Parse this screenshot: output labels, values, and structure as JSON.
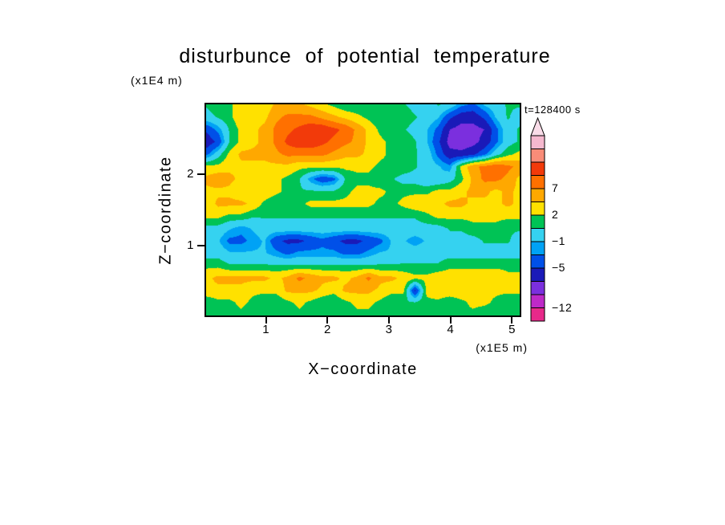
{
  "chart_data": {
    "type": "heatmap",
    "title": "disturbunce of potential temperature",
    "time_label": "t=128400 s",
    "xlabel": "X−coordinate",
    "ylabel": "Z−coordinate",
    "x_unit": "(x1E5 m)",
    "y_unit": "(x1E4 m)",
    "x_range": [
      0,
      5.15
    ],
    "z_range": [
      0,
      3
    ],
    "x_ticks": [
      {
        "value": 1,
        "label": "1"
      },
      {
        "value": 2,
        "label": "2"
      },
      {
        "value": 3,
        "label": "3"
      },
      {
        "value": 4,
        "label": "4"
      },
      {
        "value": 5,
        "label": "5"
      }
    ],
    "y_ticks": [
      {
        "value": 1,
        "label": "1"
      },
      {
        "value": 2,
        "label": "2"
      }
    ],
    "color_bins": [
      {
        "max": -12,
        "color": "#E7298A"
      },
      {
        "max": -9,
        "color": "#BE29C8"
      },
      {
        "max": -7,
        "color": "#7B2FDE"
      },
      {
        "max": -4.5,
        "color": "#1A1AB8"
      },
      {
        "max": -2.5,
        "color": "#0050E8"
      },
      {
        "max": -1.2,
        "color": "#00A2F5"
      },
      {
        "max": 0.8,
        "color": "#35D2F0"
      },
      {
        "max": 2.5,
        "color": "#00C355"
      },
      {
        "max": 4.5,
        "color": "#FFE100"
      },
      {
        "max": 6.5,
        "color": "#FFA800"
      },
      {
        "max": 8.5,
        "color": "#FF7000"
      },
      {
        "max": 10.5,
        "color": "#F23A0A"
      },
      {
        "max": 12,
        "color": "#F98C78"
      },
      {
        "max": 99,
        "color": "#F5B8CE"
      }
    ],
    "grid": [
      [
        1,
        2,
        2,
        4,
        3,
        3,
        5,
        5,
        5,
        4,
        3,
        2,
        1,
        1,
        2,
        1,
        1,
        1,
        0,
        -1,
        1,
        0,
        -2,
        -3,
        -1,
        0,
        1,
        1
      ],
      [
        0,
        1,
        2,
        4,
        4,
        4,
        6,
        7,
        7,
        7,
        6,
        5,
        4,
        3,
        2,
        1,
        1,
        2,
        1,
        0,
        -1,
        -4,
        -6,
        -6,
        -4,
        -1,
        1,
        0
      ],
      [
        -4,
        -2,
        1,
        3,
        4,
        5,
        7,
        8,
        9,
        10,
        10,
        9,
        8,
        6,
        4,
        2,
        1,
        1,
        0,
        -1,
        -3,
        -7,
        -8,
        -8,
        -7,
        -3,
        0,
        1
      ],
      [
        -6,
        -4,
        1,
        3,
        4,
        5,
        7,
        9,
        10,
        10,
        9,
        8,
        7,
        6,
        4,
        3,
        2,
        2,
        1,
        -1,
        -4,
        -8,
        -9,
        -8,
        -6,
        -3,
        0,
        1
      ],
      [
        -3,
        0,
        3,
        5,
        5,
        5,
        6,
        7,
        7,
        7,
        7,
        6,
        5,
        5,
        4,
        3,
        2,
        2,
        1,
        0,
        -3,
        -6,
        -6,
        -5,
        -3,
        0,
        2,
        3
      ],
      [
        3,
        3,
        4,
        4,
        4,
        4,
        4,
        4,
        3,
        3,
        3,
        3,
        3,
        3,
        3,
        2,
        2,
        2,
        1,
        0,
        -1,
        -2,
        3,
        6,
        7,
        8,
        7,
        6
      ],
      [
        5,
        6,
        5,
        4,
        3,
        3,
        3,
        2,
        1,
        -2,
        -4,
        -3,
        1,
        2,
        2,
        1,
        1,
        0,
        0,
        -1,
        -1,
        0,
        2,
        5,
        7,
        7,
        6,
        4
      ],
      [
        4,
        4,
        4,
        3,
        3,
        4,
        3,
        2,
        1,
        1,
        1,
        1,
        2,
        3,
        3,
        3,
        2,
        2,
        2,
        2,
        3,
        3,
        4,
        5,
        5,
        4,
        5,
        4
      ],
      [
        3,
        5,
        5,
        5,
        4,
        2,
        1,
        1,
        2,
        3,
        3,
        3,
        3,
        3,
        3,
        2,
        2,
        3,
        4,
        4,
        4,
        5,
        5,
        4,
        4,
        4,
        5,
        4
      ],
      [
        3,
        3,
        2,
        2,
        1,
        1,
        1,
        1,
        1,
        1,
        1,
        1,
        1,
        1,
        1,
        1,
        1,
        1,
        1,
        2,
        3,
        3,
        3,
        3,
        3,
        3,
        3,
        3
      ],
      [
        0,
        0,
        -1,
        -2,
        -1,
        0,
        0,
        0,
        0,
        0,
        0,
        0,
        0,
        0,
        0,
        0,
        0,
        0,
        0,
        0,
        0,
        1,
        1,
        2,
        2,
        2,
        1,
        1
      ],
      [
        0,
        -1,
        -3,
        -3,
        -2,
        -1,
        -4,
        -5,
        -5,
        -4,
        -3,
        -4,
        -5,
        -5,
        -4,
        -3,
        -1,
        -1,
        -2,
        -1,
        0,
        0,
        0,
        0,
        1,
        1,
        1,
        0
      ],
      [
        0,
        0,
        -1,
        -1,
        -1,
        -1,
        -2,
        -3,
        -2,
        -2,
        -2,
        -2,
        -3,
        -3,
        -2,
        -1,
        -1,
        0,
        0,
        0,
        0,
        0,
        0,
        0,
        0,
        0,
        0,
        0
      ],
      [
        2,
        2,
        1,
        1,
        1,
        1,
        1,
        1,
        1,
        1,
        1,
        1,
        1,
        1,
        1,
        1,
        1,
        1,
        1,
        1,
        1,
        2,
        2,
        2,
        2,
        2,
        2,
        2
      ],
      [
        4,
        5,
        5,
        5,
        5,
        5,
        4,
        5,
        7,
        6,
        5,
        5,
        4,
        5,
        7,
        5,
        5,
        4,
        3,
        3,
        4,
        4,
        4,
        4,
        4,
        4,
        3,
        3
      ],
      [
        4,
        4,
        4,
        4,
        3,
        3,
        3,
        5,
        5,
        5,
        4,
        3,
        5,
        5,
        5,
        4,
        3,
        3,
        -5,
        3,
        4,
        4,
        4,
        3,
        3,
        3,
        3,
        3
      ],
      [
        1,
        2,
        2,
        3,
        2,
        1,
        1,
        2,
        3,
        2,
        1,
        1,
        2,
        3,
        3,
        2,
        1,
        1,
        1,
        2,
        2,
        1,
        2,
        3,
        3,
        2,
        1,
        1
      ],
      [
        1,
        1,
        2,
        2,
        1,
        1,
        1,
        1,
        2,
        2,
        1,
        1,
        1,
        2,
        2,
        1,
        1,
        1,
        1,
        1,
        2,
        2,
        2,
        2,
        1,
        1,
        1,
        1
      ]
    ]
  },
  "colorbar": {
    "segment_colors_bottom_to_top": [
      "#E7298A",
      "#BE29C8",
      "#7B2FDE",
      "#1A1AB8",
      "#0050E8",
      "#00A2F5",
      "#35D2F0",
      "#00C355",
      "#FFE100",
      "#FFA800",
      "#FF7000",
      "#F23A0A",
      "#F98C78",
      "#F5B8CE"
    ],
    "arrow_color": "#F9DCE8",
    "labels": [
      {
        "text": "7",
        "boundary": 10
      },
      {
        "text": "2",
        "boundary": 8
      },
      {
        "text": "−1",
        "boundary": 6
      },
      {
        "text": "−5",
        "boundary": 4
      },
      {
        "text": "−12",
        "boundary": 1
      }
    ]
  }
}
